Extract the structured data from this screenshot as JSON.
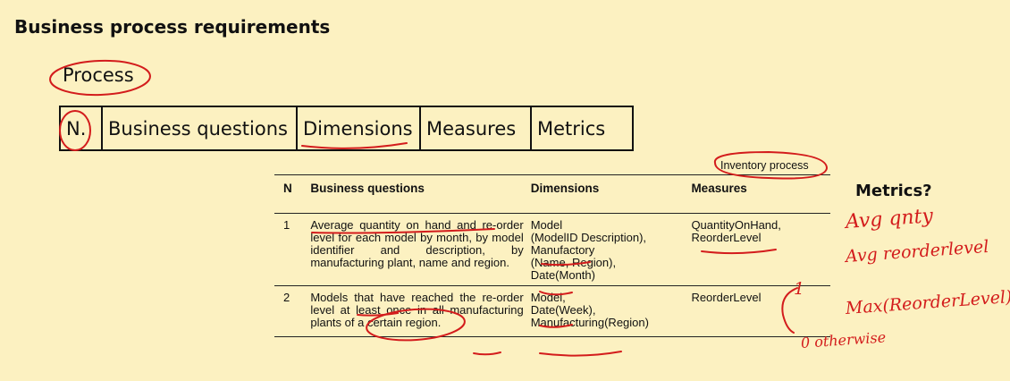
{
  "slide": {
    "title": "Business process requirements",
    "process_label": "Process"
  },
  "header_table": {
    "columns": [
      "N.",
      "Business questions",
      "Dimensions",
      "Measures",
      "Metrics"
    ]
  },
  "inventory_table": {
    "caption": "Inventory process",
    "headers": {
      "n": "N",
      "questions": "Business questions",
      "dimensions": "Dimensions",
      "measures": "Measures"
    },
    "rows": [
      {
        "n": "1",
        "question": "Average quantity on hand and re-order level for each model by month, by model identifier and description, by manufacturing plant, name and region.",
        "dimensions": [
          "Model",
          "(ModelID Description),",
          "Manufactory",
          "(Name, Region),",
          "Date(Month)"
        ],
        "measures": [
          "QuantityOnHand,",
          "ReorderLevel"
        ]
      },
      {
        "n": "2",
        "question": "Models that have reached the re-order level at least once in all manufacturing plants of a certain region.",
        "dimensions": [
          "Model,",
          "Date(Week),",
          "Manufacturing(Region)"
        ],
        "measures": [
          "ReorderLevel"
        ]
      }
    ]
  },
  "metrics_label": "Metrics?",
  "handwriting": {
    "note1": "Avg qnty",
    "note2": "Avg reorderlevel",
    "note3": "Max(ReorderLevel)",
    "note4": "1",
    "note5": "0 otherwise"
  },
  "colors": {
    "background": "#fcf1c1",
    "ink": "#d31c1c"
  }
}
